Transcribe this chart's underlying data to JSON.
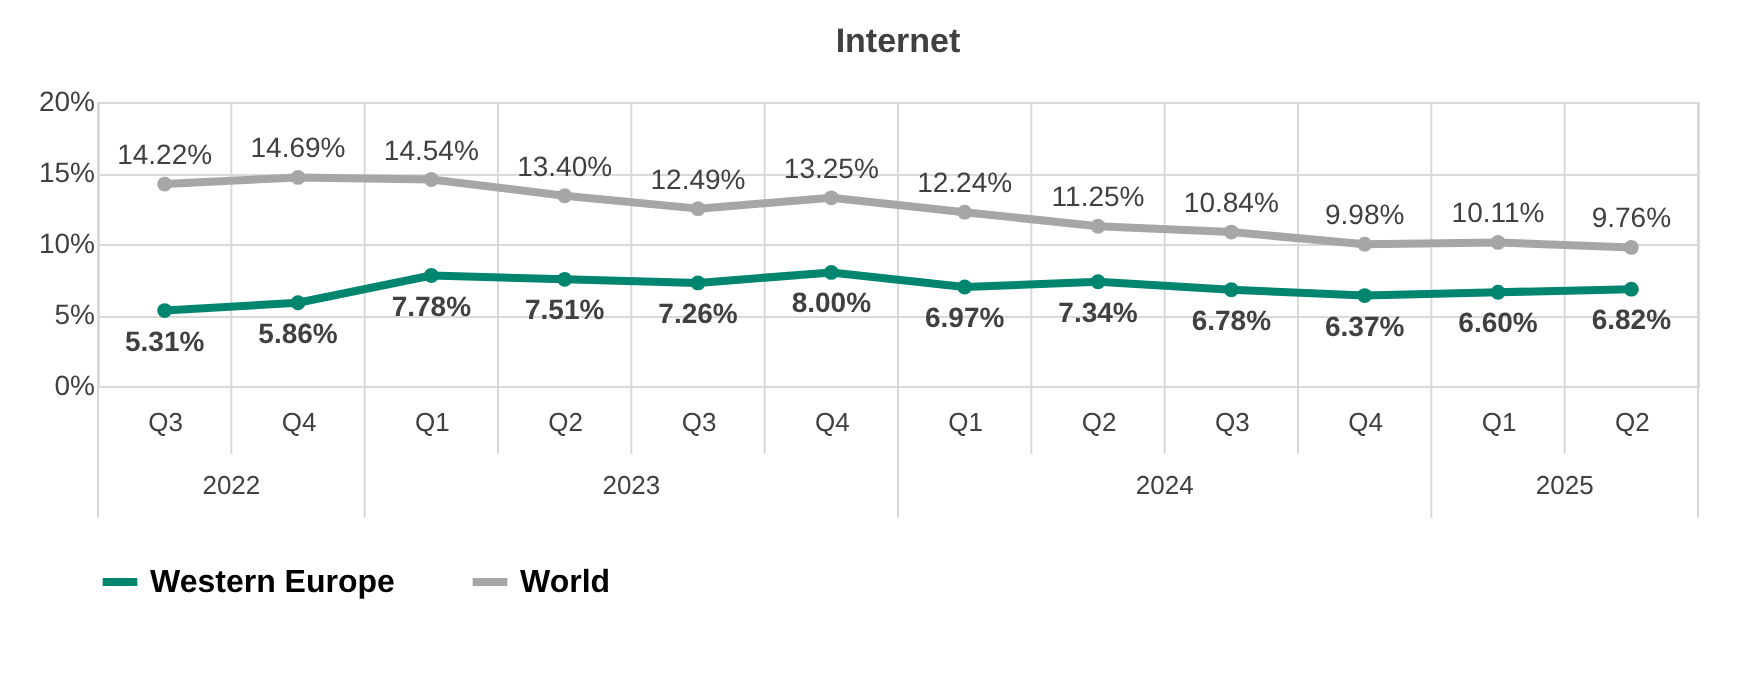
{
  "chart_data": {
    "type": "line",
    "title": "Internet",
    "categories": [
      "Q3",
      "Q4",
      "Q1",
      "Q2",
      "Q3",
      "Q4",
      "Q1",
      "Q2",
      "Q3",
      "Q4",
      "Q1",
      "Q2"
    ],
    "series": [
      {
        "name": "Western Europe",
        "color": "#00856f",
        "values": [
          5.31,
          5.86,
          7.78,
          7.51,
          7.26,
          8.0,
          6.97,
          7.34,
          6.78,
          6.37,
          6.6,
          6.82
        ],
        "value_labels": [
          "5.31%",
          "5.86%",
          "7.78%",
          "7.51%",
          "7.26%",
          "8.00%",
          "6.97%",
          "7.34%",
          "6.78%",
          "6.37%",
          "6.60%",
          "6.82%"
        ]
      },
      {
        "name": "World",
        "color": "#a6a6a6",
        "values": [
          14.22,
          14.69,
          14.54,
          13.4,
          12.49,
          13.25,
          12.24,
          11.25,
          10.84,
          9.98,
          10.11,
          9.76
        ],
        "value_labels": [
          "14.22%",
          "14.69%",
          "14.54%",
          "13.40%",
          "12.49%",
          "13.25%",
          "12.24%",
          "11.25%",
          "10.84%",
          "9.98%",
          "10.11%",
          "9.76%"
        ]
      }
    ],
    "ylim": [
      0,
      20
    ],
    "yticks": [
      {
        "value": 0,
        "label": "0%"
      },
      {
        "value": 5,
        "label": "5%"
      },
      {
        "value": 10,
        "label": "10%"
      },
      {
        "value": 15,
        "label": "15%"
      },
      {
        "value": 20,
        "label": "20%"
      }
    ],
    "annotations": [
      "2022",
      "2023",
      "2024",
      "2025"
    ],
    "grid": true,
    "legend": "bottom",
    "marker": "circle",
    "line_style": "solid"
  }
}
